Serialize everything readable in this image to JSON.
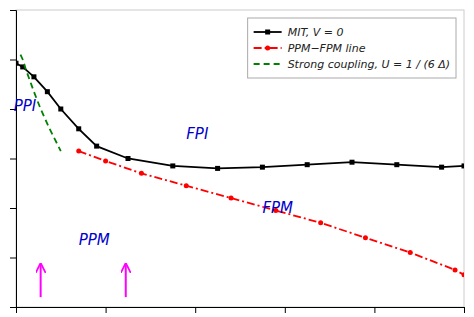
{
  "chart_data": {
    "type": "line",
    "xlim": [
      0,
      1
    ],
    "ylim": [
      0,
      1.2
    ],
    "xticks": [
      0,
      0.2,
      0.4,
      0.6,
      0.8,
      1
    ],
    "yticks": [
      0,
      0.2,
      0.4,
      0.6,
      0.8,
      1,
      1.2
    ],
    "tick_labels": false,
    "legend": "upper right",
    "series": [
      {
        "name": "MIT,  V = 0",
        "color": "black",
        "marker": "square",
        "line_style": "solid",
        "x": [
          0.0,
          0.015,
          0.04,
          0.07,
          0.1,
          0.14,
          0.18,
          0.25,
          0.35,
          0.45,
          0.55,
          0.65,
          0.75,
          0.85,
          0.95,
          1.0
        ],
        "values": [
          0.985,
          0.97,
          0.93,
          0.87,
          0.8,
          0.72,
          0.65,
          0.6,
          0.57,
          0.56,
          0.565,
          0.575,
          0.585,
          0.575,
          0.565,
          0.57
        ]
      },
      {
        "name": "PPM−FPM  line",
        "color": "red",
        "marker": "circle",
        "line_style": "dashdot",
        "x": [
          0.14,
          0.2,
          0.28,
          0.38,
          0.48,
          0.58,
          0.68,
          0.78,
          0.88,
          0.98,
          1.0
        ],
        "values": [
          0.63,
          0.59,
          0.54,
          0.49,
          0.44,
          0.39,
          0.34,
          0.28,
          0.22,
          0.15,
          0.13
        ]
      },
      {
        "name": "Strong coupling, U = 1 / (6 Δ)",
        "color": "green",
        "marker": "none",
        "line_style": "dashed",
        "x": [
          0.01,
          0.015,
          0.02,
          0.03,
          0.04,
          0.055,
          0.075,
          0.1
        ],
        "values": [
          1.02,
          1.0,
          0.97,
          0.92,
          0.87,
          0.8,
          0.72,
          0.63
        ]
      }
    ],
    "annotations": [
      {
        "text": "FPI",
        "x": 0.38,
        "y": 0.68,
        "color": "#0000cc"
      },
      {
        "text": "FPM",
        "x": 0.55,
        "y": 0.38,
        "color": "#0000cc"
      },
      {
        "text": "PPM",
        "x": 0.14,
        "y": 0.25,
        "color": "#0000cc"
      },
      {
        "text": "PPI",
        "x": -0.005,
        "y": 0.79,
        "color": "#0000cc"
      }
    ],
    "arrows": [
      {
        "x": 0.055,
        "y_start": 0.04,
        "y_end": 0.17,
        "color": "magenta"
      },
      {
        "x": 0.245,
        "y_start": 0.04,
        "y_end": 0.17,
        "color": "magenta"
      }
    ]
  }
}
